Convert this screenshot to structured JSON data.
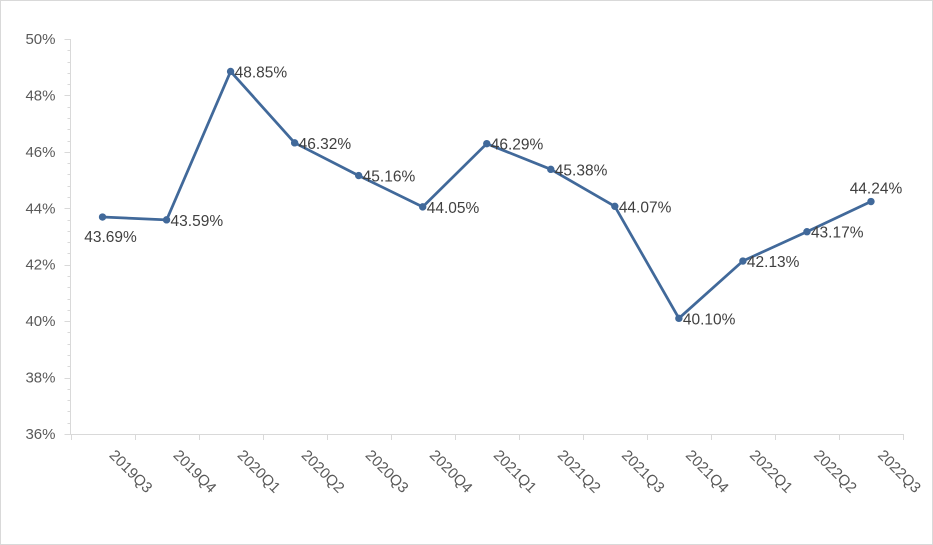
{
  "chart_data": {
    "type": "line",
    "title": "",
    "xlabel": "",
    "ylabel": "",
    "ylim": [
      36,
      50
    ],
    "ytick_step": 2,
    "ytick_suffix": "%",
    "grid": false,
    "legend": "none",
    "line_color": "#41699a",
    "categories": [
      "2019Q3",
      "2019Q4",
      "2020Q1",
      "2020Q2",
      "2020Q3",
      "2020Q4",
      "2021Q1",
      "2021Q2",
      "2021Q3",
      "2021Q4",
      "2022Q1",
      "2022Q2",
      "2022Q3"
    ],
    "series": [
      {
        "values": [
          43.69,
          43.59,
          48.85,
          46.32,
          45.16,
          44.05,
          46.29,
          45.38,
          44.07,
          40.1,
          42.13,
          43.17,
          44.24
        ],
        "labels": [
          "43.69%",
          "43.59%",
          "48.85%",
          "46.32%",
          "45.16%",
          "44.05%",
          "46.29%",
          "45.38%",
          "44.07%",
          "40.10%",
          "42.13%",
          "43.17%",
          "44.24%"
        ]
      }
    ]
  }
}
